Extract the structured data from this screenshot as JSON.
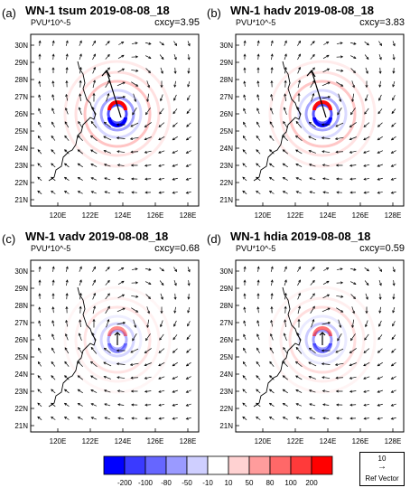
{
  "figure": {
    "panels": [
      {
        "letter": "(a)",
        "title": "WN-1 tsum 2019-08-08_18",
        "unit": "PVU*10^-5",
        "cxcy": "cxcy=3.95",
        "strength": 1.0,
        "big_arrow": true
      },
      {
        "letter": "(b)",
        "title": "WN-1 hadv 2019-08-08_18",
        "unit": "PVU*10^-5",
        "cxcy": "cxcy=3.83",
        "strength": 0.95,
        "big_arrow": true
      },
      {
        "letter": "(c)",
        "title": "WN-1 vadv 2019-08-08_18",
        "unit": "PVU*10^-5",
        "cxcy": "cxcy=0.68",
        "strength": 0.45,
        "big_arrow": false
      },
      {
        "letter": "(d)",
        "title": "WN-1 hdia 2019-08-08_18",
        "unit": "PVU*10^-5",
        "cxcy": "cxcy=0.59",
        "strength": 0.55,
        "big_arrow": false
      }
    ],
    "lat_labels": [
      "30N",
      "29N",
      "28N",
      "27N",
      "26N",
      "25N",
      "24N",
      "23N",
      "22N",
      "21N"
    ],
    "lon_labels": [
      "120E",
      "122E",
      "124E",
      "126E",
      "128E"
    ],
    "colorbar": {
      "labels": [
        "-200",
        "-100",
        "-80",
        "-50",
        "-10",
        "10",
        "50",
        "80",
        "100",
        "200"
      ],
      "colors": [
        "#0000ff",
        "#3a3aff",
        "#6666ff",
        "#9a9aff",
        "#cfcfff",
        "#ffffff",
        "#ffd2d2",
        "#ff9c9c",
        "#ff6868",
        "#ff3a3a",
        "#ff0000"
      ]
    },
    "ref_vector": {
      "value": "10",
      "label": "Ref Vector"
    }
  }
}
